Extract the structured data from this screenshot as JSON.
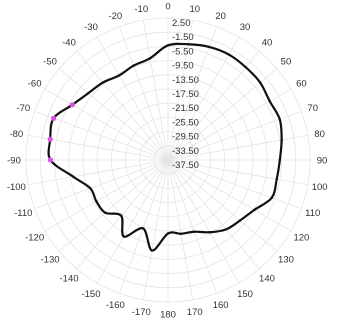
{
  "chart_data": {
    "type": "line",
    "coordinate_system": "polar",
    "title": "",
    "angle_unit": "degrees",
    "angle_direction": "clockwise",
    "angle_zero": "top",
    "angle_ticks": [
      0,
      10,
      20,
      30,
      40,
      50,
      60,
      70,
      80,
      90,
      100,
      110,
      120,
      130,
      140,
      150,
      160,
      170,
      180,
      -170,
      -160,
      -150,
      -140,
      -130,
      -120,
      -110,
      -100,
      -90,
      -80,
      -70,
      -60,
      -50,
      -40,
      -30,
      -20,
      -10
    ],
    "angle_tick_labels": [
      "0",
      "10",
      "20",
      "30",
      "40",
      "50",
      "60",
      "70",
      "80",
      "90",
      "100",
      "110",
      "120",
      "130",
      "140",
      "150",
      "160",
      "170",
      "180",
      "-170",
      "-160",
      "-150",
      "-140",
      "-130",
      "-120",
      "-110",
      "-100",
      "-90",
      "-80",
      "-70",
      "-60",
      "-50",
      "-40",
      "-30",
      "-20",
      "-10"
    ],
    "radial_range": [
      -37.5,
      2.5
    ],
    "radial_ticks": [
      2.5,
      -1.5,
      -5.5,
      -9.5,
      -13.5,
      -17.5,
      -21.5,
      -25.5,
      -29.5,
      -33.5,
      -37.5
    ],
    "radial_tick_labels": [
      "2.50",
      "-1.50",
      "-5.50",
      "-9.50",
      "-13.50",
      "-17.50",
      "-21.50",
      "-25.50",
      "-29.50",
      "-33.50",
      "-37.50"
    ],
    "grid": true,
    "legend": "none",
    "series": [
      {
        "color": "#111111",
        "angles": [
          0,
          10,
          20,
          30,
          40,
          50,
          60,
          70,
          80,
          90,
          100,
          110,
          120,
          130,
          140,
          150,
          160,
          170,
          180,
          -170,
          -160,
          -150,
          -140,
          -130,
          -120,
          -110,
          -100,
          -90,
          -80,
          -70,
          -60,
          -50,
          -40,
          -30,
          -20,
          -10
        ],
        "values": [
          -5.2,
          -4.4,
          -3.6,
          -3.2,
          -3.4,
          -3.6,
          -4.4,
          -4.0,
          -5.0,
          -6.0,
          -6.4,
          -6.4,
          -9.4,
          -11.0,
          -12.0,
          -14.0,
          -16.0,
          -16.4,
          -16.8,
          -11.6,
          -17.0,
          -12.6,
          -17.0,
          -14.4,
          -14.2,
          -14.2,
          -10.4,
          -4.4,
          -3.8,
          -3.2,
          -6.4,
          -8.2,
          -9.0,
          -10.0,
          -9.2,
          -8.4
        ]
      }
    ],
    "highlighted_points": {
      "color": "#e04fe6",
      "angles": [
        -90,
        -80,
        -70,
        -60
      ]
    }
  }
}
